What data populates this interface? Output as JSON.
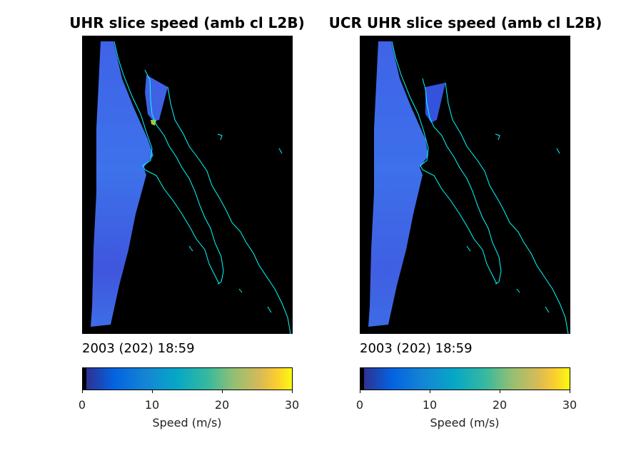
{
  "chart_data": [
    {
      "type": "heatmap",
      "title": "UHR slice speed (amb cl L2B)",
      "timestamp": "2003 (202) 18:59",
      "colorbar": {
        "label": "Speed (m/s)",
        "range": [
          0,
          30
        ],
        "ticks": [
          "0",
          "10",
          "20",
          "30"
        ],
        "colormap": "parula"
      },
      "coastline_color": "#00ffff",
      "background_color": "#000000"
    },
    {
      "type": "heatmap",
      "title": "UCR UHR slice speed (amb cl L2B)",
      "timestamp": "2003 (202) 18:59",
      "colorbar": {
        "label": "Speed (m/s)",
        "range": [
          0,
          30
        ],
        "ticks": [
          "0",
          "10",
          "20",
          "30"
        ],
        "colormap": "parula"
      },
      "coastline_color": "#00ffff",
      "background_color": "#000000"
    }
  ]
}
